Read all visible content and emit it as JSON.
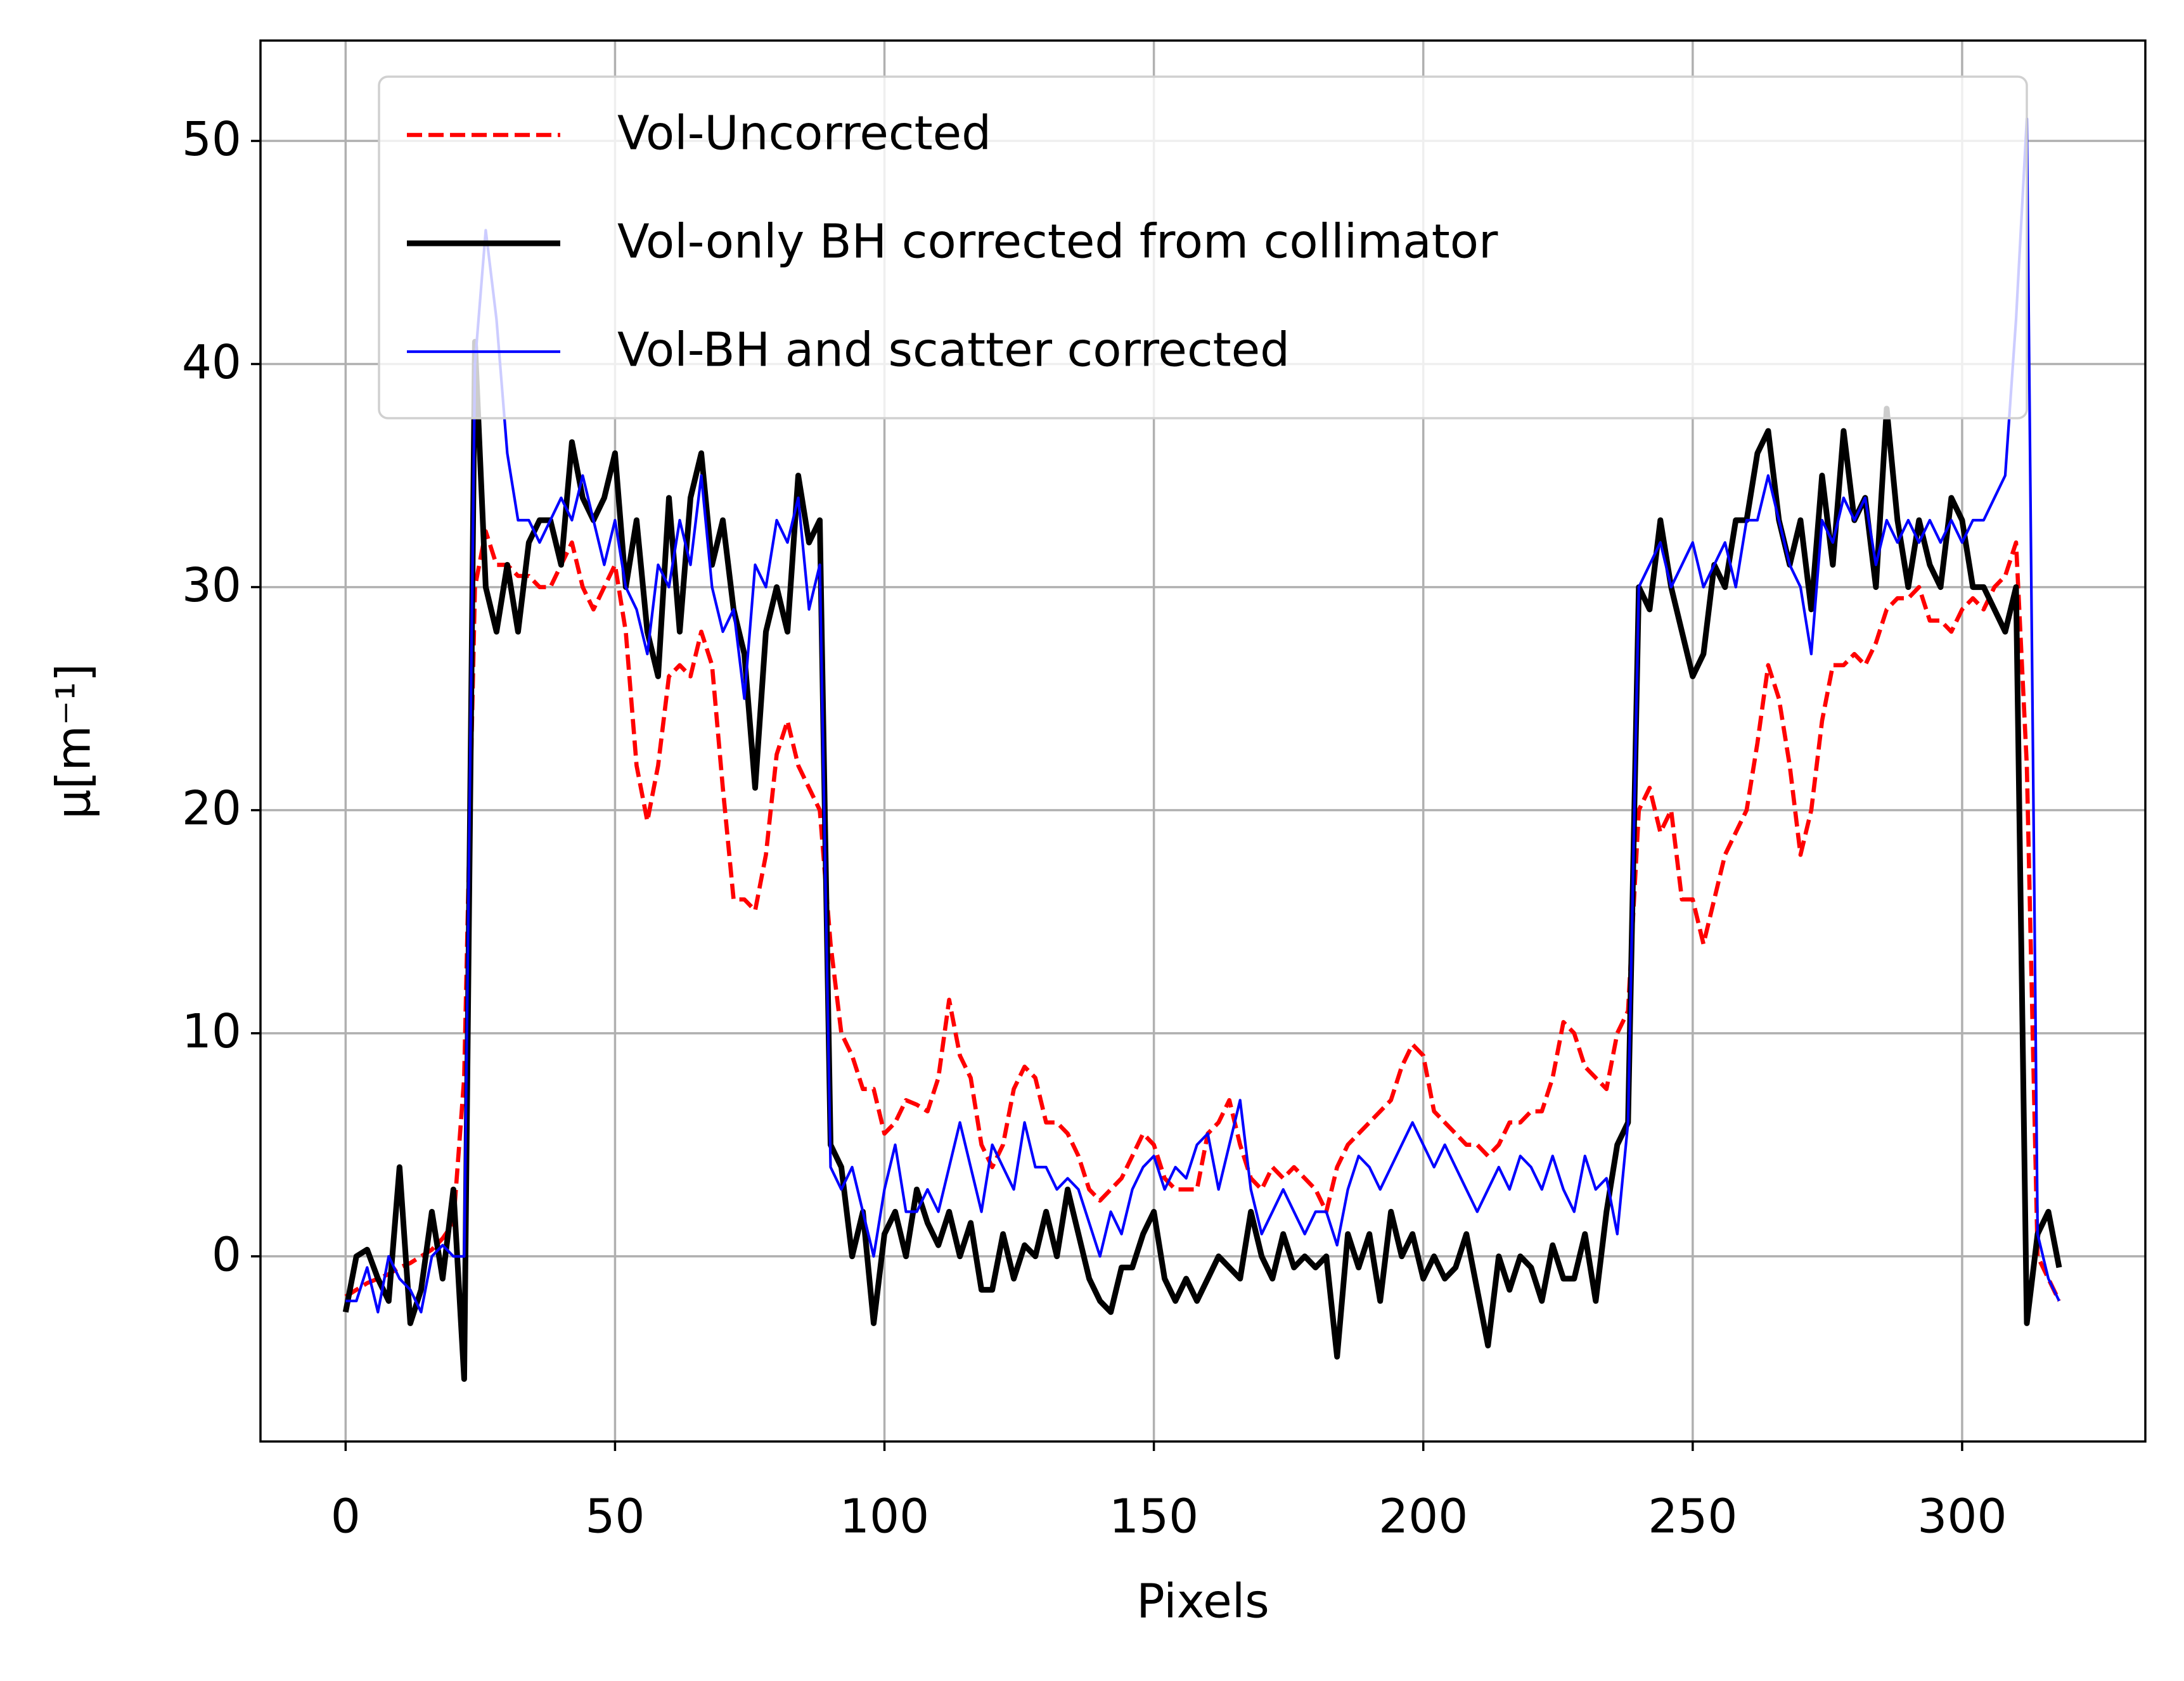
{
  "chart_data": {
    "type": "line",
    "x_label": "Pixels",
    "y_label": "μ[m⁻¹]",
    "x": [
      0,
      2,
      4,
      6,
      8,
      10,
      12,
      14,
      16,
      18,
      20,
      22,
      24,
      26,
      28,
      30,
      32,
      34,
      36,
      38,
      40,
      42,
      44,
      46,
      48,
      50,
      52,
      54,
      56,
      58,
      60,
      62,
      64,
      66,
      68,
      70,
      72,
      74,
      76,
      78,
      80,
      82,
      84,
      86,
      88,
      90,
      92,
      94,
      96,
      98,
      100,
      102,
      104,
      106,
      108,
      110,
      112,
      114,
      116,
      118,
      120,
      122,
      124,
      126,
      128,
      130,
      132,
      134,
      136,
      138,
      140,
      142,
      144,
      146,
      148,
      150,
      152,
      154,
      156,
      158,
      160,
      162,
      164,
      166,
      168,
      170,
      172,
      174,
      176,
      178,
      180,
      182,
      184,
      186,
      188,
      190,
      192,
      194,
      196,
      198,
      200,
      202,
      204,
      206,
      208,
      210,
      212,
      214,
      216,
      218,
      220,
      222,
      224,
      226,
      228,
      230,
      232,
      234,
      236,
      238,
      240,
      242,
      244,
      246,
      248,
      250,
      252,
      254,
      256,
      258,
      260,
      262,
      264,
      266,
      268,
      270,
      272,
      274,
      276,
      278,
      280,
      282,
      284,
      286,
      288,
      290,
      292,
      294,
      296,
      298,
      300,
      302,
      304,
      306,
      308,
      310,
      312,
      314,
      316,
      318
    ],
    "series": [
      {
        "name": "Vol-Uncorrected",
        "color": "#ff0000",
        "dash": true,
        "values": [
          -1.8,
          -1.5,
          -1.2,
          -1.0,
          -0.8,
          -0.5,
          -0.3,
          0,
          0.3,
          0.8,
          1.5,
          8,
          30,
          32.5,
          31,
          31,
          30.5,
          30.5,
          30,
          30,
          31,
          32,
          30,
          29,
          30,
          31,
          28,
          22,
          19.5,
          22,
          26,
          26.5,
          26,
          28,
          26.5,
          21,
          16,
          16,
          15.5,
          18,
          22.5,
          24,
          22,
          21,
          20,
          14,
          10,
          9,
          7.5,
          7.5,
          5.5,
          6,
          7,
          6.8,
          6.5,
          8,
          11.5,
          9,
          8,
          5,
          4,
          5,
          7.5,
          8.5,
          8,
          6,
          6,
          5.5,
          4.5,
          3,
          2.5,
          3,
          3.5,
          4.5,
          5.5,
          5,
          3.5,
          3,
          3,
          3,
          5.5,
          6,
          7,
          5,
          3.5,
          3,
          4,
          3.5,
          4,
          3.5,
          3,
          2,
          4,
          5,
          5.5,
          6,
          6.5,
          7,
          8.5,
          9.5,
          9,
          6.5,
          6,
          5.5,
          5,
          5,
          4.5,
          5,
          6,
          6,
          6.5,
          6.5,
          8,
          10.5,
          10,
          8.5,
          8,
          7.5,
          10,
          11,
          20,
          21,
          19,
          20,
          16,
          16,
          14,
          16,
          18,
          19,
          20,
          23,
          26.5,
          25,
          22,
          18,
          20,
          24,
          26.5,
          26.5,
          27,
          26.5,
          27.5,
          29,
          29.5,
          29.5,
          30,
          28.5,
          28.5,
          28,
          29,
          29.5,
          29,
          30,
          30.5,
          32,
          22,
          0,
          -1,
          -2
        ]
      },
      {
        "name": "Vol-only BH corrected from collimator",
        "color": "#000000",
        "dash": false,
        "values": [
          -2.5,
          0,
          0.3,
          -1,
          -2,
          4,
          -3,
          -1.5,
          2,
          -1,
          3,
          -5.5,
          41,
          30,
          28,
          31,
          28,
          32,
          33,
          33,
          31,
          36.5,
          34,
          33,
          34,
          36,
          30,
          33,
          28,
          26,
          34,
          28,
          34,
          36,
          31,
          33,
          29,
          27,
          21,
          28,
          30,
          28,
          35,
          32,
          33,
          5,
          4,
          0,
          2,
          -3,
          1,
          2,
          0,
          3,
          1.5,
          0.5,
          2,
          0,
          1.5,
          -1.5,
          -1.5,
          1,
          -1,
          0.5,
          0,
          2,
          0,
          3,
          1,
          -1,
          -2,
          -2.5,
          -0.5,
          -0.5,
          1,
          2,
          -1,
          -2,
          -1,
          -2,
          -1,
          0,
          -0.5,
          -1,
          2,
          0,
          -1,
          1,
          -0.5,
          0,
          -0.5,
          0,
          -4.5,
          1,
          -0.5,
          1,
          -2,
          2,
          0,
          1,
          -1,
          0,
          -1,
          -0.5,
          1,
          -1.5,
          -4,
          0,
          -1.5,
          0,
          -0.5,
          -2,
          0.5,
          -1,
          -1,
          1,
          -2,
          2,
          5,
          6,
          30,
          29,
          33,
          30,
          28,
          26,
          27,
          31,
          30,
          33,
          33,
          36,
          37,
          33,
          31,
          33,
          29,
          35,
          31,
          37,
          33,
          34,
          30,
          38,
          33,
          30,
          33,
          31,
          30,
          34,
          33,
          30,
          30,
          29,
          28,
          30,
          -3,
          1,
          2,
          -0.5
        ]
      },
      {
        "name": "Vol-BH and scatter corrected",
        "color": "#0000ff",
        "dash": false,
        "values": [
          -2,
          -2,
          -0.5,
          -2.5,
          0,
          -1,
          -1.5,
          -2.5,
          0,
          0.5,
          0,
          0,
          40,
          46,
          42,
          36,
          33,
          33,
          32,
          33,
          34,
          33,
          35,
          33,
          31,
          33,
          30,
          29,
          27,
          31,
          30,
          33,
          31,
          35,
          30,
          28,
          29,
          25,
          31,
          30,
          33,
          32,
          34,
          29,
          31,
          4,
          3,
          4,
          2,
          0,
          3,
          5,
          2,
          2,
          3,
          2,
          4,
          6,
          4,
          2,
          5,
          4,
          3,
          6,
          4,
          4,
          3,
          3.5,
          3,
          1.5,
          0,
          2,
          1,
          3,
          4,
          4.5,
          3,
          4,
          3.5,
          5,
          5.5,
          3,
          5,
          7,
          3,
          1,
          2,
          3,
          2,
          1,
          2,
          2,
          0.5,
          3,
          4.5,
          4,
          3,
          4,
          5,
          6,
          5,
          4,
          5,
          4,
          3,
          2,
          3,
          4,
          3,
          4.5,
          4,
          3,
          4.5,
          3,
          2,
          4.5,
          3,
          3.5,
          1,
          6,
          30,
          31,
          32,
          30,
          31,
          32,
          30,
          31,
          32,
          30,
          33,
          33,
          35,
          33,
          31,
          30,
          27,
          33,
          32,
          34,
          33,
          34,
          31,
          33,
          32,
          33,
          32,
          33,
          32,
          33,
          32,
          33,
          33,
          34,
          35,
          42,
          51,
          1,
          -1,
          -2
        ]
      }
    ],
    "xlim": [
      -15.8,
      334
    ],
    "ylim": [
      -8.3,
      54.5
    ],
    "xticks": [
      0,
      50,
      100,
      150,
      200,
      250,
      300
    ],
    "yticks": [
      0,
      10,
      20,
      30,
      40,
      50
    ],
    "grid": true,
    "legend": "upper left"
  }
}
